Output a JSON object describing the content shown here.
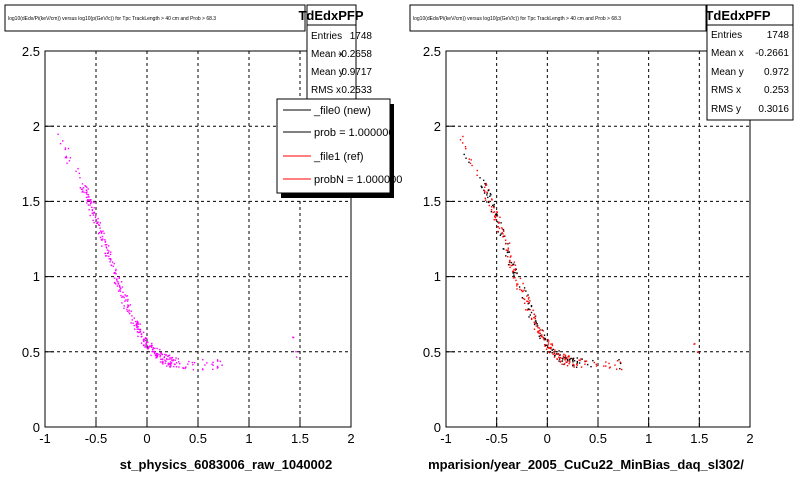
{
  "colors": {
    "left_series": "#ff00ff",
    "right_series": "#ff0000",
    "right_overlay": "#000000",
    "legend_new": "#000000",
    "legend_ref": "#ff0000"
  },
  "footer": "",
  "legend": [
    {
      "label": "_file0 (new)",
      "color": "#000000"
    },
    {
      "label": "prob = 1.000000",
      "color": "#000000"
    },
    {
      "label": "_file1 (ref)",
      "color": "#ff0000"
    },
    {
      "label": "probN = 1.000000",
      "color": "#ff0000"
    }
  ],
  "chart_data": [
    {
      "type": "scatter",
      "title": "log10(dEdx/Pi(keV/cm)) versus log10(p(GeV/c)) for Tpc TrackLength > 40 cm and Prob > 68.3",
      "xlabel": "st_physics_6083006_raw_1040002",
      "ylabel": "",
      "xlim": [
        -1,
        2
      ],
      "ylim": [
        0,
        2.5
      ],
      "xticks": [
        "-1",
        "-0.5",
        "0",
        "0.5",
        "1",
        "1.5",
        "2"
      ],
      "yticks": [
        "0",
        "0.5",
        "1",
        "1.5",
        "2",
        "2.5"
      ],
      "grid": true,
      "series": [
        {
          "color": "#ff00ff",
          "points": [
            [
              -0.85,
              1.95
            ],
            [
              -0.82,
              1.85
            ],
            [
              -0.78,
              1.78
            ],
            [
              -0.72,
              1.72
            ],
            [
              -0.65,
              1.62
            ],
            [
              -0.58,
              1.52
            ],
            [
              -0.5,
              1.38
            ],
            [
              -0.42,
              1.22
            ],
            [
              -0.34,
              1.06
            ],
            [
              -0.26,
              0.92
            ],
            [
              -0.18,
              0.78
            ],
            [
              -0.1,
              0.66
            ],
            [
              -0.02,
              0.57
            ],
            [
              0.06,
              0.5
            ],
            [
              0.14,
              0.46
            ],
            [
              0.22,
              0.44
            ],
            [
              0.3,
              0.43
            ],
            [
              0.4,
              0.42
            ],
            [
              0.55,
              0.42
            ],
            [
              0.7,
              0.42
            ],
            [
              1.42,
              0.58
            ],
            [
              1.48,
              0.5
            ]
          ]
        }
      ],
      "stats": {
        "name": "TdEdxPFP",
        "rows": [
          {
            "label": "Entries",
            "value": "1748"
          },
          {
            "label": "Mean x",
            "value": "-0.2658"
          },
          {
            "label": "Mean y",
            "value": "0.9717"
          },
          {
            "label": "RMS x",
            "value": "0.2533"
          }
        ]
      }
    },
    {
      "type": "scatter",
      "title": "log10(dEdx/Pi(keV/cm)) versus log10(p(GeV/c)) for Tpc TrackLength > 40 cm and Prob > 68.3",
      "xlabel": "mparision/year_2005_CuCu22_MinBias_daq_sl302/",
      "ylabel": "",
      "xlim": [
        -1,
        2
      ],
      "ylim": [
        0,
        2.5
      ],
      "xticks": [
        "-1",
        "-0.5",
        "0",
        "0.5",
        "1",
        "1.5",
        "2"
      ],
      "yticks": [
        "0",
        "0.5",
        "1",
        "1.5",
        "2",
        "2.5"
      ],
      "grid": true,
      "series": [
        {
          "color": "#ff0000",
          "points": [
            [
              -0.85,
              1.95
            ],
            [
              -0.82,
              1.85
            ],
            [
              -0.78,
              1.78
            ],
            [
              -0.72,
              1.72
            ],
            [
              -0.65,
              1.62
            ],
            [
              -0.58,
              1.52
            ],
            [
              -0.5,
              1.38
            ],
            [
              -0.42,
              1.22
            ],
            [
              -0.34,
              1.06
            ],
            [
              -0.26,
              0.92
            ],
            [
              -0.18,
              0.78
            ],
            [
              -0.1,
              0.66
            ],
            [
              -0.02,
              0.57
            ],
            [
              0.06,
              0.5
            ],
            [
              0.14,
              0.46
            ],
            [
              0.22,
              0.44
            ],
            [
              0.3,
              0.43
            ],
            [
              0.4,
              0.42
            ],
            [
              0.55,
              0.42
            ],
            [
              0.7,
              0.42
            ],
            [
              1.42,
              0.58
            ],
            [
              1.48,
              0.5
            ]
          ]
        }
      ],
      "stats": {
        "name": "TdEdxPFP",
        "rows": [
          {
            "label": "Entries",
            "value": "1748"
          },
          {
            "label": "Mean x",
            "value": "-0.2661"
          },
          {
            "label": "Mean y",
            "value": "0.972"
          },
          {
            "label": "RMS x",
            "value": "0.253"
          },
          {
            "label": "RMS y",
            "value": "0.3016"
          }
        ]
      }
    }
  ]
}
